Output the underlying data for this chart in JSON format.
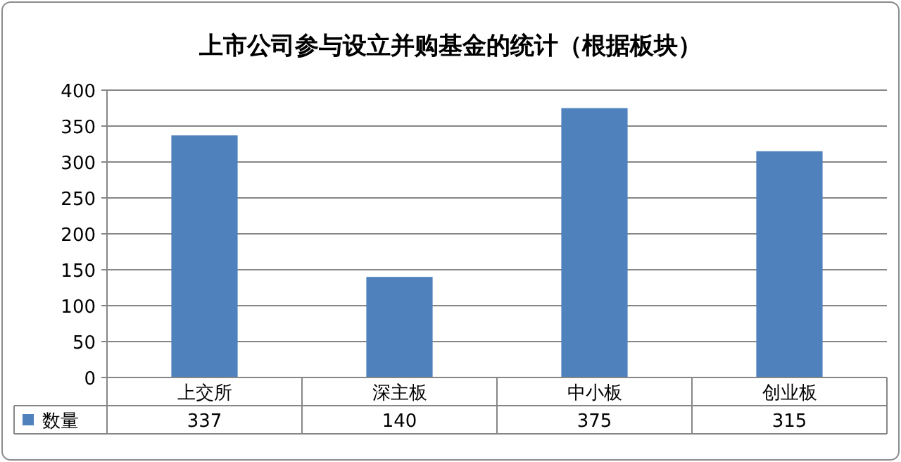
{
  "chart_data": {
    "type": "bar",
    "title": "上市公司参与设立并购基金的统计（根据板块）",
    "categories": [
      "上交所",
      "深主板",
      "中小板",
      "创业板"
    ],
    "series": [
      {
        "name": "数量",
        "color": "#4f81bd",
        "values": [
          337,
          140,
          375,
          315
        ]
      }
    ],
    "ylim": [
      0,
      400
    ],
    "yticks": [
      0,
      50,
      100,
      150,
      200,
      250,
      300,
      350,
      400
    ],
    "grid": "y",
    "legend": "bottom",
    "data_labels": true
  }
}
